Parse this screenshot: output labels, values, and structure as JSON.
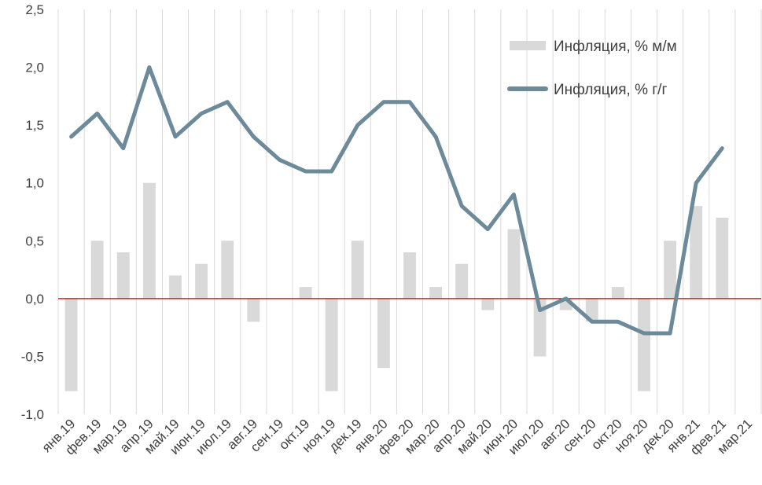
{
  "chart_data": {
    "type": "bar+line",
    "title": "",
    "xlabel": "",
    "ylabel": "",
    "ylim": [
      -1.0,
      2.5
    ],
    "yticks": [
      -1.0,
      -0.5,
      0.0,
      0.5,
      1.0,
      1.5,
      2.0,
      2.5
    ],
    "ytick_labels": [
      "-1,0",
      "-0,5",
      "0,0",
      "0,5",
      "1,0",
      "1,5",
      "2,0",
      "2,5"
    ],
    "categories": [
      "янв.19",
      "фев.19",
      "мар.19",
      "апр.19",
      "май.19",
      "июн.19",
      "июл.19",
      "авг.19",
      "сен.19",
      "окт.19",
      "ноя.19",
      "дек.19",
      "янв.20",
      "фев.20",
      "мар.20",
      "апр.20",
      "май.20",
      "июн.20",
      "июл.20",
      "авг.20",
      "сен.20",
      "окт.20",
      "ноя.20",
      "дек.20",
      "янв.21",
      "фев.21",
      "мар.21"
    ],
    "grid": "vertical",
    "legend_position": "top-right",
    "series": [
      {
        "name": "Инфляция, % м/м",
        "type": "bar",
        "color": "#d9d9d9",
        "values": [
          -0.8,
          0.5,
          0.4,
          1.0,
          0.2,
          0.3,
          0.5,
          -0.2,
          0.0,
          0.1,
          -0.8,
          0.5,
          -0.6,
          0.4,
          0.1,
          0.3,
          -0.1,
          0.6,
          -0.5,
          -0.1,
          -0.2,
          0.1,
          -0.8,
          0.5,
          0.8,
          0.7,
          null
        ]
      },
      {
        "name": "Инфляция, % г/г",
        "type": "line",
        "color": "#6c8a9a",
        "values": [
          1.4,
          1.6,
          1.3,
          2.0,
          1.4,
          1.6,
          1.7,
          1.4,
          1.2,
          1.1,
          1.1,
          1.5,
          1.7,
          1.7,
          1.4,
          0.8,
          0.6,
          0.9,
          -0.1,
          0.0,
          -0.2,
          -0.2,
          -0.3,
          -0.3,
          1.0,
          1.3,
          null
        ]
      }
    ],
    "zero_line_color": "#c00000",
    "grid_color": "#d9d9d9"
  }
}
